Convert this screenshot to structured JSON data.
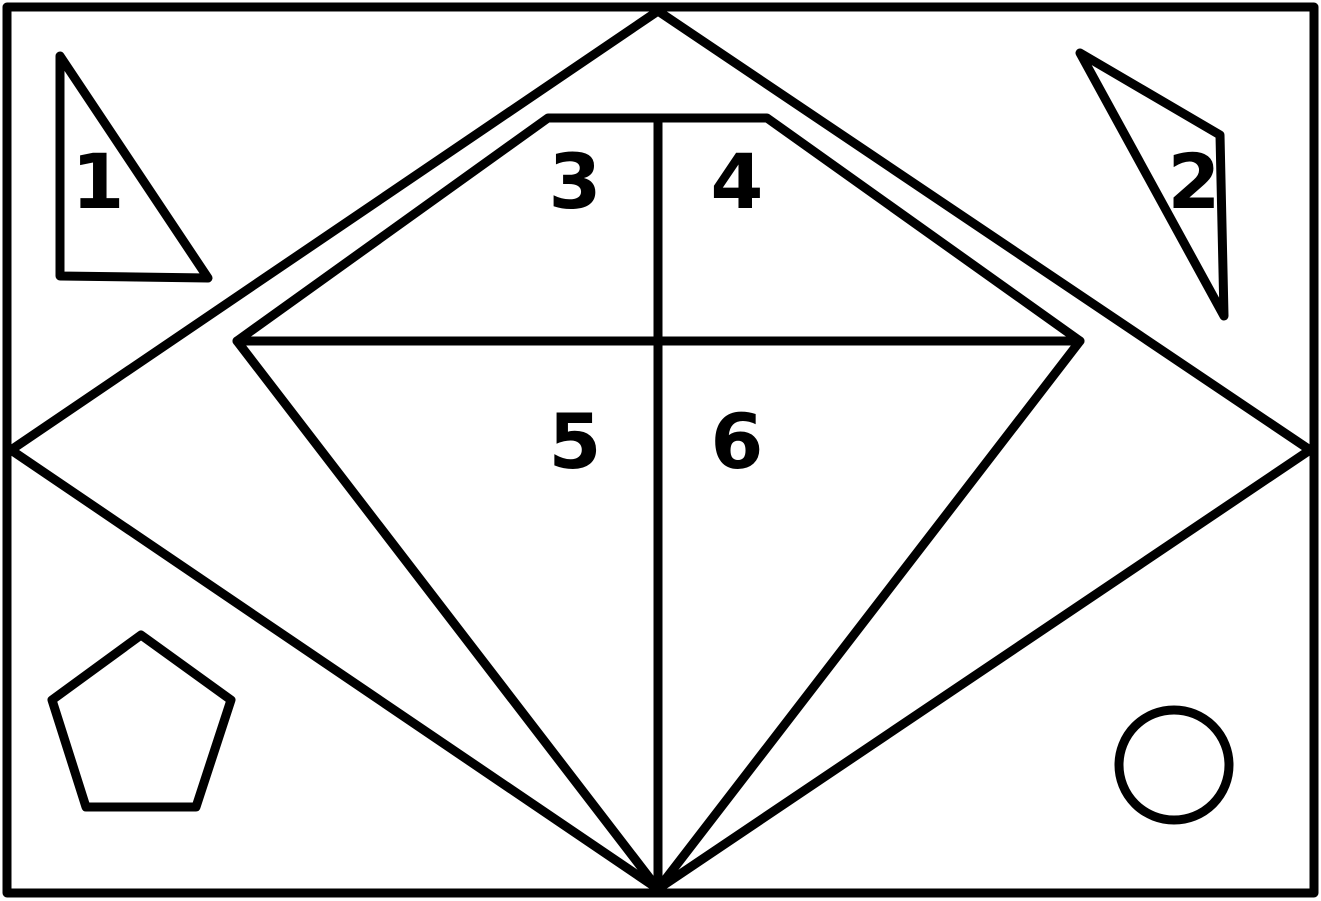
{
  "labels": {
    "region_1": "1",
    "region_2": "2",
    "region_3": "3",
    "region_4": "4",
    "region_5": "5",
    "region_6": "6"
  },
  "colors": {
    "line": "#000000",
    "background": "#ffffff"
  }
}
